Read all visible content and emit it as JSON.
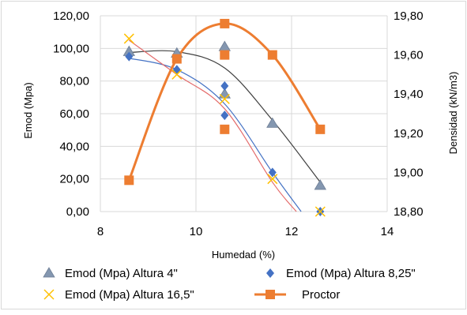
{
  "chart_data": {
    "type": "scatter",
    "title": "",
    "xlabel": "Humedad (%)",
    "ylabel": "Emod (Mpa)",
    "y2label": "Densidad (kN/m3)",
    "xlim": [
      8,
      14
    ],
    "ylim": [
      0,
      120
    ],
    "y2lim": [
      18.8,
      19.8
    ],
    "grid": true,
    "legend_position": "bottom",
    "x_ticks": [
      "8",
      "10",
      "12",
      "14"
    ],
    "x_tick_values": [
      8,
      10,
      12,
      14
    ],
    "y_ticks": [
      "0,00",
      "20,00",
      "40,00",
      "60,00",
      "80,00",
      "100,00",
      "120,00"
    ],
    "y_tick_values": [
      0,
      20,
      40,
      60,
      80,
      100,
      120
    ],
    "y2_ticks": [
      "18,80",
      "19,00",
      "19,20",
      "19,40",
      "19,60",
      "19,80"
    ],
    "y2_tick_values": [
      18.8,
      19.0,
      19.2,
      19.4,
      19.6,
      19.8
    ],
    "series": [
      {
        "name": "Emod (Mpa) Altura 4\"",
        "marker": "triangle",
        "color": "#8497b0",
        "axis": "left",
        "points": [
          {
            "x": 8.6,
            "y": 98
          },
          {
            "x": 9.6,
            "y": 97
          },
          {
            "x": 10.6,
            "y": 101
          },
          {
            "x": 10.6,
            "y": 72
          },
          {
            "x": 11.6,
            "y": 54
          },
          {
            "x": 12.6,
            "y": 16
          }
        ],
        "trend": {
          "color": "#404040",
          "points": [
            {
              "x": 8.6,
              "y": 97.5
            },
            {
              "x": 9.6,
              "y": 98
            },
            {
              "x": 10.6,
              "y": 88
            },
            {
              "x": 11.6,
              "y": 56
            },
            {
              "x": 12.6,
              "y": 18
            }
          ]
        }
      },
      {
        "name": "Emod (Mpa) Altura 8,25\"",
        "marker": "diamond",
        "color": "#4472c4",
        "axis": "left",
        "points": [
          {
            "x": 8.6,
            "y": 95
          },
          {
            "x": 9.6,
            "y": 87
          },
          {
            "x": 10.6,
            "y": 77
          },
          {
            "x": 10.6,
            "y": 59
          },
          {
            "x": 11.6,
            "y": 24
          },
          {
            "x": 12.6,
            "y": 0
          }
        ],
        "trend": {
          "color": "#4472c4",
          "points": [
            {
              "x": 8.6,
              "y": 94
            },
            {
              "x": 9.6,
              "y": 87
            },
            {
              "x": 10.6,
              "y": 66
            },
            {
              "x": 11.6,
              "y": 24
            },
            {
              "x": 12.2,
              "y": 0
            }
          ]
        }
      },
      {
        "name": "Emod (Mpa) Altura 16,5\"",
        "marker": "x",
        "color": "#ffc000",
        "axis": "left",
        "points": [
          {
            "x": 8.6,
            "y": 106
          },
          {
            "x": 9.6,
            "y": 84
          },
          {
            "x": 10.6,
            "y": 69
          },
          {
            "x": 11.6,
            "y": 20
          },
          {
            "x": 12.6,
            "y": 0
          }
        ],
        "trend": {
          "color": "#e46c6c",
          "points": [
            {
              "x": 8.6,
              "y": 105
            },
            {
              "x": 9.6,
              "y": 84
            },
            {
              "x": 10.6,
              "y": 63
            },
            {
              "x": 11.6,
              "y": 18
            },
            {
              "x": 12.1,
              "y": 0
            }
          ]
        }
      },
      {
        "name": "Proctor",
        "marker": "square",
        "color": "#ed7d31",
        "axis": "right",
        "line": true,
        "points": [
          {
            "x": 8.6,
            "y": 18.96
          },
          {
            "x": 9.6,
            "y": 19.58
          },
          {
            "x": 10.6,
            "y": 19.76
          },
          {
            "x": 10.6,
            "y": 19.6
          },
          {
            "x": 10.6,
            "y": 19.22
          },
          {
            "x": 11.6,
            "y": 19.6
          },
          {
            "x": 12.6,
            "y": 19.22
          }
        ],
        "line_points": [
          {
            "x": 8.6,
            "y": 18.96
          },
          {
            "x": 9.6,
            "y": 19.58
          },
          {
            "x": 10.6,
            "y": 19.76
          },
          {
            "x": 11.6,
            "y": 19.6
          },
          {
            "x": 12.6,
            "y": 19.22
          }
        ]
      }
    ]
  }
}
